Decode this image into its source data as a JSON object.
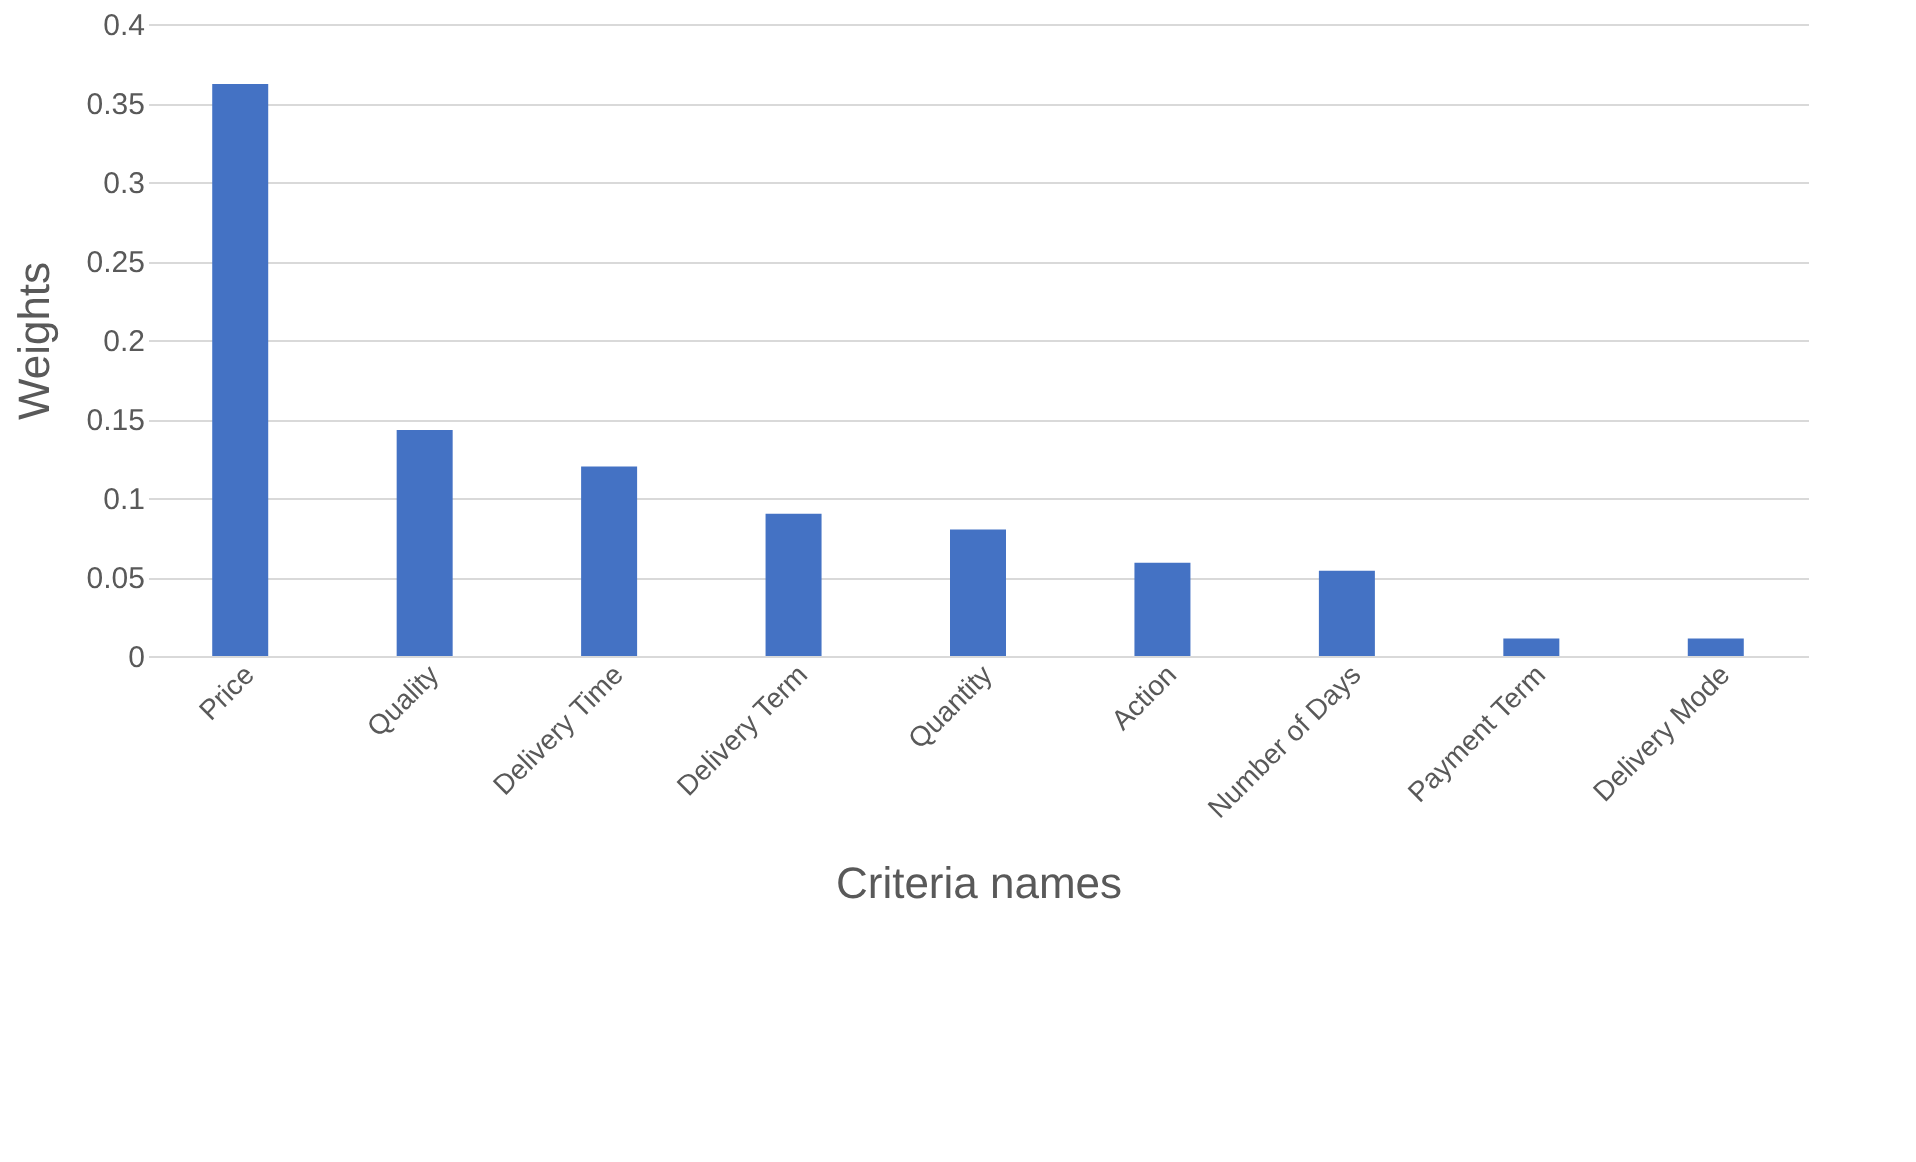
{
  "chart_data": {
    "type": "bar",
    "xlabel": "Criteria names",
    "ylabel": "Weights",
    "categories": [
      "Price",
      "Quality",
      "Delivery Time",
      "Delivery Term",
      "Quantity",
      "Action",
      "Number of Days",
      "Payment Term",
      "Delivery Mode"
    ],
    "values": [
      0.362,
      0.143,
      0.12,
      0.09,
      0.08,
      0.059,
      0.054,
      0.011,
      0.011
    ],
    "color": "#4472c4",
    "ylim": [
      0,
      0.4
    ],
    "yticks": [
      0,
      0.05,
      0.1,
      0.15,
      0.2,
      0.25,
      0.3,
      0.35,
      0.4
    ],
    "grid": "y"
  }
}
